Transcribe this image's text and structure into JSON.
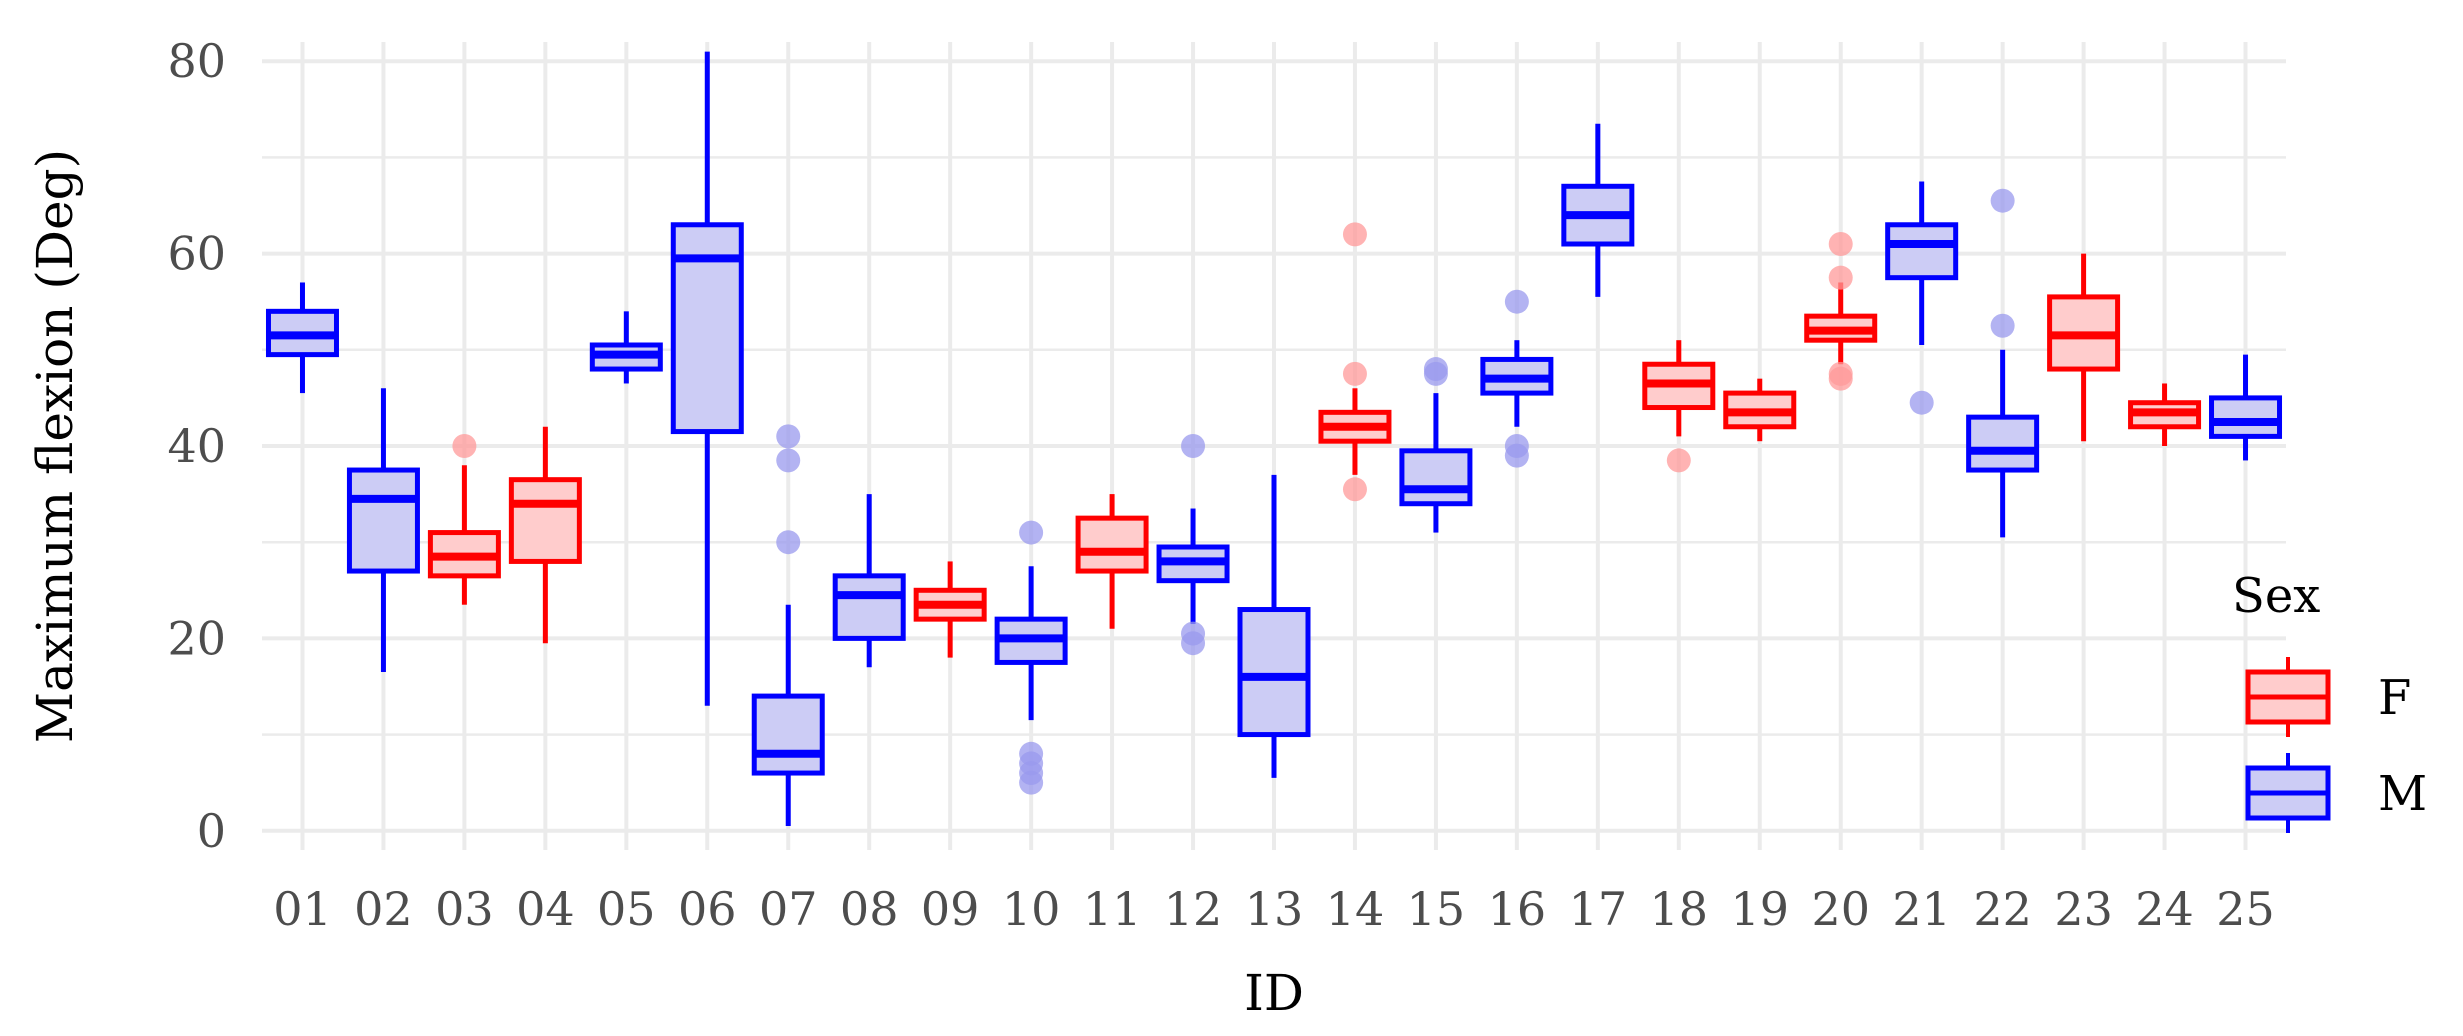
{
  "chart_data": {
    "type": "boxplot",
    "xlabel": "ID",
    "ylabel": "Maximum flexion (Deg)",
    "ylim": [
      -2,
      82
    ],
    "yticks": [
      0,
      20,
      40,
      60,
      80
    ],
    "grid": true,
    "legend": {
      "title": "Sex",
      "position": "right",
      "entries": [
        {
          "label": "F",
          "key": "F"
        },
        {
          "label": "M",
          "key": "M"
        }
      ]
    },
    "colors": {
      "F": {
        "line": "#ff0000",
        "fill": "#ffcccc",
        "outlier": "#ff9999"
      },
      "M": {
        "line": "#0000ff",
        "fill": "#ccccf5",
        "outlier": "#9999ee"
      }
    },
    "categories": [
      "01",
      "02",
      "03",
      "04",
      "05",
      "06",
      "07",
      "08",
      "09",
      "10",
      "11",
      "12",
      "13",
      "14",
      "15",
      "16",
      "17",
      "18",
      "19",
      "20",
      "21",
      "22",
      "23",
      "24",
      "25"
    ],
    "boxes": [
      {
        "id": "01",
        "sex": "M",
        "whisker_low": 45.5,
        "q1": 49.5,
        "median": 51.5,
        "q3": 54,
        "whisker_high": 57,
        "outliers": []
      },
      {
        "id": "02",
        "sex": "M",
        "whisker_low": 16.5,
        "q1": 27,
        "median": 34.5,
        "q3": 37.5,
        "whisker_high": 46,
        "outliers": []
      },
      {
        "id": "03",
        "sex": "F",
        "whisker_low": 23.5,
        "q1": 26.5,
        "median": 28.5,
        "q3": 31,
        "whisker_high": 38,
        "outliers": [
          40
        ]
      },
      {
        "id": "04",
        "sex": "F",
        "whisker_low": 19.5,
        "q1": 28,
        "median": 34,
        "q3": 36.5,
        "whisker_high": 42,
        "outliers": []
      },
      {
        "id": "05",
        "sex": "M",
        "whisker_low": 46.5,
        "q1": 48,
        "median": 49.5,
        "q3": 50.5,
        "whisker_high": 54,
        "outliers": []
      },
      {
        "id": "06",
        "sex": "M",
        "whisker_low": 13,
        "q1": 41.5,
        "median": 59.5,
        "q3": 63,
        "whisker_high": 81,
        "outliers": []
      },
      {
        "id": "07",
        "sex": "M",
        "whisker_low": 0.5,
        "q1": 6,
        "median": 8,
        "q3": 14,
        "whisker_high": 23.5,
        "outliers": [
          30,
          38.5,
          41
        ]
      },
      {
        "id": "08",
        "sex": "M",
        "whisker_low": 17,
        "q1": 20,
        "median": 24.5,
        "q3": 26.5,
        "whisker_high": 35,
        "outliers": []
      },
      {
        "id": "09",
        "sex": "F",
        "whisker_low": 18,
        "q1": 22,
        "median": 23.5,
        "q3": 25,
        "whisker_high": 28,
        "outliers": []
      },
      {
        "id": "10",
        "sex": "M",
        "whisker_low": 11.5,
        "q1": 17.5,
        "median": 20,
        "q3": 22,
        "whisker_high": 27.5,
        "outliers": [
          5,
          6,
          7,
          8,
          31
        ]
      },
      {
        "id": "11",
        "sex": "F",
        "whisker_low": 21,
        "q1": 27,
        "median": 29,
        "q3": 32.5,
        "whisker_high": 35,
        "outliers": []
      },
      {
        "id": "12",
        "sex": "M",
        "whisker_low": 21.5,
        "q1": 26,
        "median": 28,
        "q3": 29.5,
        "whisker_high": 33.5,
        "outliers": [
          19.5,
          20.5,
          40
        ]
      },
      {
        "id": "13",
        "sex": "M",
        "whisker_low": 5.5,
        "q1": 10,
        "median": 16,
        "q3": 23,
        "whisker_high": 37,
        "outliers": []
      },
      {
        "id": "14",
        "sex": "F",
        "whisker_low": 37,
        "q1": 40.5,
        "median": 42,
        "q3": 43.5,
        "whisker_high": 46,
        "outliers": [
          35.5,
          47.5,
          62
        ]
      },
      {
        "id": "15",
        "sex": "M",
        "whisker_low": 31,
        "q1": 34,
        "median": 35.5,
        "q3": 39.5,
        "whisker_high": 45.5,
        "outliers": [
          47.5,
          48
        ]
      },
      {
        "id": "16",
        "sex": "M",
        "whisker_low": 42,
        "q1": 45.5,
        "median": 47,
        "q3": 49,
        "whisker_high": 51,
        "outliers": [
          39,
          40,
          55
        ]
      },
      {
        "id": "17",
        "sex": "M",
        "whisker_low": 55.5,
        "q1": 61,
        "median": 64,
        "q3": 67,
        "whisker_high": 73.5,
        "outliers": []
      },
      {
        "id": "18",
        "sex": "F",
        "whisker_low": 41,
        "q1": 44,
        "median": 46.5,
        "q3": 48.5,
        "whisker_high": 51,
        "outliers": [
          38.5
        ]
      },
      {
        "id": "19",
        "sex": "F",
        "whisker_low": 40.5,
        "q1": 42,
        "median": 43.5,
        "q3": 45.5,
        "whisker_high": 47,
        "outliers": []
      },
      {
        "id": "20",
        "sex": "F",
        "whisker_low": 48.5,
        "q1": 51,
        "median": 52,
        "q3": 53.5,
        "whisker_high": 57,
        "outliers": [
          47,
          47.5,
          57.5,
          61
        ]
      },
      {
        "id": "21",
        "sex": "M",
        "whisker_low": 50.5,
        "q1": 57.5,
        "median": 61,
        "q3": 63,
        "whisker_high": 67.5,
        "outliers": [
          44.5
        ]
      },
      {
        "id": "22",
        "sex": "M",
        "whisker_low": 30.5,
        "q1": 37.5,
        "median": 39.5,
        "q3": 43,
        "whisker_high": 50,
        "outliers": [
          52.5,
          65.5
        ]
      },
      {
        "id": "23",
        "sex": "F",
        "whisker_low": 40.5,
        "q1": 48,
        "median": 51.5,
        "q3": 55.5,
        "whisker_high": 60,
        "outliers": []
      },
      {
        "id": "24",
        "sex": "F",
        "whisker_low": 40,
        "q1": 42,
        "median": 43.5,
        "q3": 44.5,
        "whisker_high": 46.5,
        "outliers": []
      },
      {
        "id": "25",
        "sex": "M",
        "whisker_low": 38.5,
        "q1": 41,
        "median": 42.5,
        "q3": 45,
        "whisker_high": 49.5,
        "outliers": []
      }
    ]
  }
}
